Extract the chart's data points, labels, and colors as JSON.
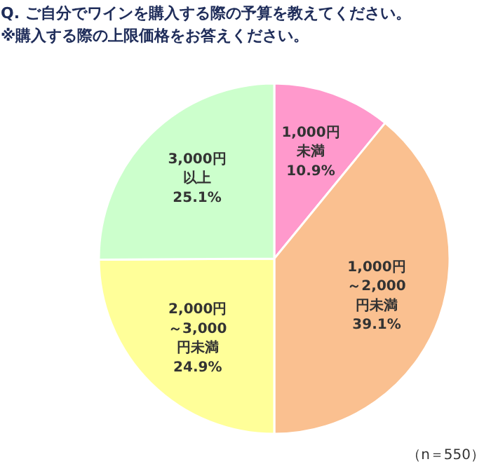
{
  "chart_data": {
    "type": "pie",
    "title": "Q. ご自分でワインを購入する際の予算を教えてください。",
    "subtitle": "※購入する際の上限価格をお答えください。",
    "categories": [
      "1,000円未満",
      "1,000円～2,000円未満",
      "2,000円～3,000円未満",
      "3,000円以上"
    ],
    "values": [
      10.9,
      39.1,
      24.9,
      25.1
    ],
    "value_labels": [
      "10.9%",
      "39.1%",
      "24.9%",
      "25.1%"
    ],
    "colors": [
      "#ff99cc",
      "#fac090",
      "#ffff99",
      "#ccffcc"
    ],
    "data_labels": true,
    "annotations": [
      "（n＝550）"
    ]
  }
}
